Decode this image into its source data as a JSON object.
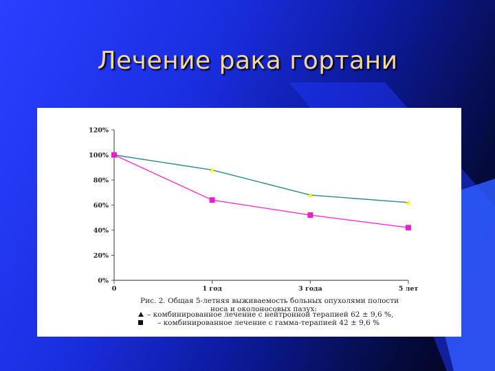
{
  "slide": {
    "title": "Лечение рака гортани"
  },
  "colors": {
    "series_a": "#2b8a8a",
    "series_a_marker": "#ffff00",
    "series_b": "#ff2fd0",
    "series_b_marker": "#e81fd0"
  },
  "chart_data": {
    "type": "line",
    "categories": [
      "0",
      "1 год",
      "3 года",
      "5 лет"
    ],
    "yticks": [
      "0%",
      "20%",
      "40%",
      "60%",
      "80%",
      "100%",
      "120%"
    ],
    "ylim": [
      0,
      120
    ],
    "grid": false,
    "series": [
      {
        "name": "",
        "values": [
          100,
          88,
          68,
          62
        ],
        "marker": "triangle"
      },
      {
        "name": "",
        "values": [
          100,
          64,
          52,
          42
        ],
        "marker": "square"
      }
    ],
    "caption": {
      "line1": "Рис. 2. Общая 5-летняя выживаемость больных опухолями полости",
      "line2": "носа и околоносовых пазух:",
      "legend1": "– комбинированное лечение с нейтронной терапией   62 ± 9,6 %,",
      "legend2": "– комбинированное лечение с гамма-терапией   42 ± 9,6 %"
    }
  }
}
